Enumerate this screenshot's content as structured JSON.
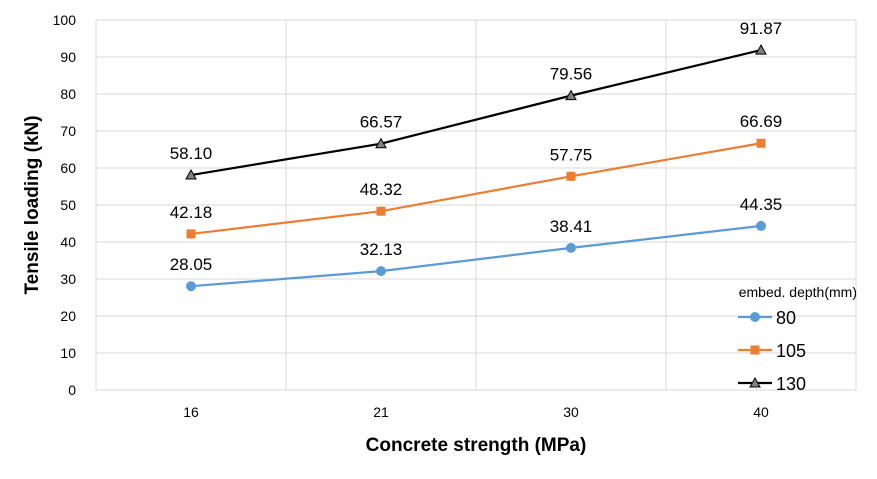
{
  "chart_data": {
    "type": "line",
    "title": "",
    "xlabel": "Concrete strength (MPa)",
    "ylabel": "Tensile loading (kN)",
    "categories": [
      "16",
      "21",
      "30",
      "40"
    ],
    "ylim": [
      0,
      100
    ],
    "yticks": [
      "0",
      "10",
      "20",
      "30",
      "40",
      "50",
      "60",
      "70",
      "80",
      "90",
      "100"
    ],
    "grid": true,
    "legend": {
      "title": "embed. depth(mm)",
      "placement": "bottom-right"
    },
    "series": [
      {
        "name": "80",
        "values": [
          28.05,
          32.13,
          38.41,
          44.35
        ],
        "labels": [
          "28.05",
          "32.13",
          "38.41",
          "44.35"
        ],
        "color": "#5B9BD5",
        "marker": "circle"
      },
      {
        "name": "105",
        "values": [
          42.18,
          48.32,
          57.75,
          66.69
        ],
        "labels": [
          "42.18",
          "48.32",
          "57.75",
          "66.69"
        ],
        "color": "#ED7D31",
        "marker": "square"
      },
      {
        "name": "130",
        "values": [
          58.1,
          66.57,
          79.56,
          91.87
        ],
        "labels": [
          "58.10",
          "66.57",
          "79.56",
          "91.87"
        ],
        "color": "#000000",
        "marker": "triangle"
      }
    ]
  }
}
